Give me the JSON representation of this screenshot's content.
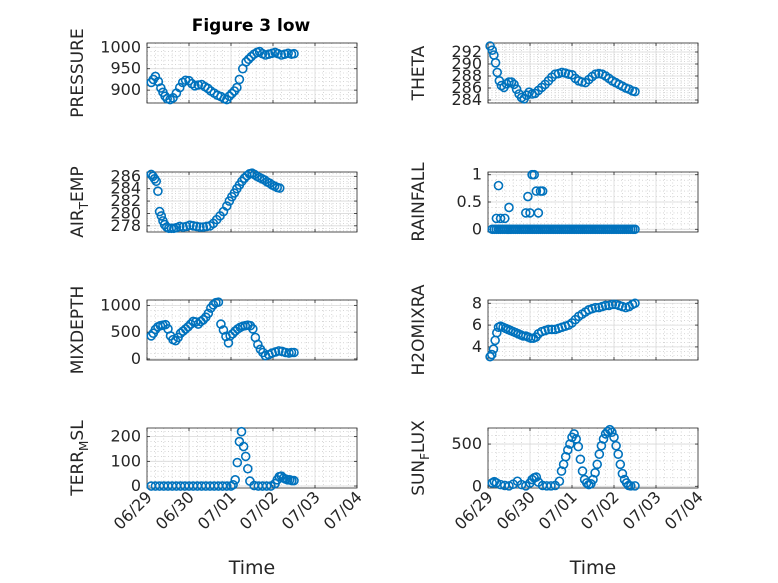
{
  "title": "Figure 3 low",
  "colors": {
    "marker": "#0072BD",
    "axis": "#262626",
    "grid": "#d9d9d9"
  },
  "chart_data": [
    {
      "type": "scatter",
      "id": "pressure",
      "ylabel": "PRESSURE",
      "xlabel": "",
      "xlim": [
        0,
        5
      ],
      "ylim": [
        870,
        1010
      ],
      "yticks": [
        900,
        950,
        1000
      ],
      "xticks": [
        0,
        1,
        2,
        3,
        4,
        5
      ],
      "xticklabels": [
        "06/29",
        "06/30",
        "07/01",
        "07/02",
        "07/03",
        "07/04"
      ],
      "grid": true,
      "marker": "circle",
      "x": [
        0.1,
        0.15,
        0.2,
        0.27,
        0.33,
        0.38,
        0.43,
        0.48,
        0.55,
        0.62,
        0.7,
        0.78,
        0.85,
        0.92,
        1.0,
        1.07,
        1.14,
        1.22,
        1.3,
        1.38,
        1.45,
        1.52,
        1.6,
        1.68,
        1.76,
        1.84,
        1.9,
        1.96,
        2.02,
        2.08,
        2.14,
        2.2,
        2.28,
        2.36,
        2.42,
        2.48,
        2.55,
        2.62,
        2.68,
        2.75,
        2.82,
        2.9,
        2.98,
        3.05,
        3.12,
        3.2,
        3.28,
        3.36,
        3.44,
        3.5
      ],
      "y": [
        918,
        925,
        932,
        920,
        905,
        895,
        886,
        880,
        878,
        882,
        893,
        906,
        918,
        923,
        922,
        915,
        910,
        912,
        913,
        908,
        904,
        898,
        893,
        888,
        885,
        880,
        878,
        886,
        892,
        898,
        906,
        925,
        950,
        966,
        972,
        978,
        984,
        988,
        990,
        985,
        982,
        984,
        986,
        988,
        985,
        982,
        984,
        986,
        984,
        985
      ]
    },
    {
      "type": "scatter",
      "id": "theta",
      "ylabel": "THETA",
      "xlabel": "",
      "xlim": [
        0,
        5
      ],
      "ylim": [
        283.5,
        293.5
      ],
      "yticks": [
        284,
        286,
        288,
        290,
        292
      ],
      "xticks": [
        0,
        1,
        2,
        3,
        4,
        5
      ],
      "xticklabels": [
        "06/29",
        "06/30",
        "07/01",
        "07/02",
        "07/03",
        "07/04"
      ],
      "grid": true,
      "marker": "circle",
      "x": [
        0.05,
        0.1,
        0.14,
        0.18,
        0.22,
        0.27,
        0.32,
        0.38,
        0.44,
        0.5,
        0.56,
        0.62,
        0.68,
        0.74,
        0.8,
        0.86,
        0.92,
        0.98,
        1.05,
        1.12,
        1.2,
        1.28,
        1.36,
        1.44,
        1.52,
        1.6,
        1.68,
        1.76,
        1.84,
        1.92,
        2.0,
        2.08,
        2.16,
        2.24,
        2.32,
        2.4,
        2.48,
        2.56,
        2.64,
        2.72,
        2.8,
        2.88,
        2.96,
        3.04,
        3.12,
        3.2,
        3.28,
        3.36,
        3.44,
        3.5
      ],
      "y": [
        293,
        292.3,
        291.5,
        290.2,
        288.6,
        287.2,
        286.4,
        286.1,
        286.7,
        287.0,
        287.0,
        286.6,
        285.8,
        285.0,
        284.4,
        284.2,
        284.8,
        285.3,
        285.0,
        285.1,
        285.6,
        286.1,
        286.6,
        287.2,
        287.8,
        288.3,
        288.4,
        288.6,
        288.5,
        288.3,
        288.2,
        287.6,
        287.2,
        287.0,
        286.9,
        287.4,
        287.9,
        288.3,
        288.4,
        288.3,
        288.0,
        287.6,
        287.2,
        286.9,
        286.6,
        286.3,
        286.0,
        285.8,
        285.5,
        285.4
      ]
    },
    {
      "type": "scatter",
      "id": "air_temp",
      "ylabel": "AIR_TEMP",
      "xlabel": "",
      "xlim": [
        0,
        5
      ],
      "ylim": [
        277,
        286.7
      ],
      "yticks": [
        278,
        280,
        282,
        284,
        286
      ],
      "xticks": [
        0,
        1,
        2,
        3,
        4,
        5
      ],
      "xticklabels": [
        "06/29",
        "06/30",
        "07/01",
        "07/02",
        "07/03",
        "07/04"
      ],
      "grid": true,
      "marker": "circle",
      "x": [
        0.1,
        0.14,
        0.18,
        0.22,
        0.26,
        0.3,
        0.34,
        0.38,
        0.42,
        0.47,
        0.52,
        0.58,
        0.64,
        0.7,
        0.78,
        0.86,
        0.94,
        1.02,
        1.1,
        1.18,
        1.26,
        1.34,
        1.42,
        1.5,
        1.58,
        1.66,
        1.74,
        1.82,
        1.9,
        1.96,
        2.02,
        2.08,
        2.14,
        2.2,
        2.26,
        2.32,
        2.38,
        2.44,
        2.5,
        2.56,
        2.62,
        2.68,
        2.74,
        2.8,
        2.86,
        2.92,
        2.98,
        3.04,
        3.1,
        3.16
      ],
      "y": [
        286.3,
        286.0,
        285.6,
        285.2,
        283.6,
        280.3,
        279.6,
        278.8,
        278.2,
        277.8,
        277.6,
        277.6,
        277.6,
        277.7,
        277.9,
        277.8,
        277.9,
        278.1,
        278.0,
        277.9,
        277.8,
        277.8,
        277.9,
        278.0,
        278.4,
        279.0,
        279.6,
        280.3,
        281.2,
        282.0,
        282.7,
        283.3,
        284.0,
        284.6,
        285.2,
        285.7,
        286.1,
        286.4,
        286.5,
        286.3,
        286.0,
        285.8,
        285.6,
        285.4,
        285.1,
        284.9,
        284.6,
        284.4,
        284.2,
        284.1
      ]
    },
    {
      "type": "scatter",
      "id": "rainfall",
      "ylabel": "RAINFALL",
      "xlabel": "",
      "xlim": [
        0,
        5
      ],
      "ylim": [
        -0.05,
        1.05
      ],
      "yticks": [
        0,
        0.5,
        1
      ],
      "xticks": [
        0,
        1,
        2,
        3,
        4,
        5
      ],
      "xticklabels": [
        "06/29",
        "06/30",
        "07/01",
        "07/02",
        "07/03",
        "07/04"
      ],
      "grid": true,
      "marker": "circle",
      "x": [
        0.1,
        0.15,
        0.2,
        0.25,
        0.3,
        0.35,
        0.4,
        0.45,
        0.5,
        0.55,
        0.6,
        0.65,
        0.7,
        0.75,
        0.8,
        0.85,
        0.9,
        0.95,
        1.0,
        1.05,
        1.1,
        1.15,
        1.2,
        1.25,
        1.3,
        1.35,
        1.4,
        1.45,
        1.5,
        1.55,
        1.6,
        1.65,
        1.7,
        1.75,
        1.8,
        1.85,
        1.9,
        1.95,
        2.0,
        2.05,
        2.1,
        2.15,
        2.2,
        2.25,
        2.3,
        2.35,
        2.4,
        2.45,
        2.5,
        2.55,
        2.6,
        2.65,
        2.7,
        2.75,
        2.8,
        2.85,
        2.9,
        2.95,
        3.0,
        3.05,
        3.1,
        3.15,
        3.2,
        3.25,
        3.3,
        3.35,
        3.4,
        3.45,
        3.5,
        0.2,
        0.25,
        0.3,
        0.4,
        0.5,
        0.9,
        0.95,
        1.0,
        1.05,
        1.1,
        1.15,
        1.2,
        1.25,
        1.3
      ],
      "y": [
        0,
        0,
        0,
        0,
        0,
        0,
        0,
        0,
        0,
        0,
        0,
        0,
        0,
        0,
        0,
        0,
        0,
        0,
        0,
        0,
        0,
        0,
        0,
        0,
        0,
        0,
        0,
        0,
        0,
        0,
        0,
        0,
        0,
        0,
        0,
        0,
        0,
        0,
        0,
        0,
        0,
        0,
        0,
        0,
        0,
        0,
        0,
        0,
        0,
        0,
        0,
        0,
        0,
        0,
        0,
        0,
        0,
        0,
        0,
        0,
        0,
        0,
        0,
        0,
        0,
        0,
        0,
        0,
        0,
        0.2,
        0.8,
        0.2,
        0.2,
        0.4,
        0.3,
        0.6,
        0.3,
        1.0,
        1.0,
        0.7,
        0.3,
        0.7,
        0.7
      ]
    },
    {
      "type": "scatter",
      "id": "mixdepth",
      "ylabel": "MIXDEPTH",
      "xlabel": "",
      "xlim": [
        0,
        5
      ],
      "ylim": [
        -20,
        1100
      ],
      "yticks": [
        0,
        500,
        1000
      ],
      "xticks": [
        0,
        1,
        2,
        3,
        4,
        5
      ],
      "xticklabels": [
        "06/29",
        "06/30",
        "07/01",
        "07/02",
        "07/03",
        "07/04"
      ],
      "grid": true,
      "marker": "circle",
      "x": [
        0.1,
        0.15,
        0.2,
        0.26,
        0.32,
        0.38,
        0.44,
        0.5,
        0.56,
        0.62,
        0.68,
        0.74,
        0.8,
        0.86,
        0.92,
        0.98,
        1.04,
        1.1,
        1.16,
        1.22,
        1.28,
        1.34,
        1.4,
        1.46,
        1.52,
        1.58,
        1.64,
        1.7,
        1.76,
        1.82,
        1.88,
        1.94,
        1.98,
        2.04,
        2.1,
        2.16,
        2.22,
        2.28,
        2.34,
        2.4,
        2.46,
        2.52,
        2.58,
        2.64,
        2.7,
        2.76,
        2.82,
        2.9,
        2.98,
        3.06,
        3.14,
        3.22,
        3.3,
        3.38,
        3.44,
        3.5
      ],
      "y": [
        430,
        480,
        550,
        600,
        620,
        630,
        640,
        560,
        430,
        360,
        340,
        400,
        480,
        520,
        560,
        600,
        650,
        700,
        690,
        650,
        700,
        730,
        780,
        850,
        950,
        1010,
        1050,
        1060,
        650,
        540,
        420,
        300,
        430,
        470,
        520,
        560,
        590,
        610,
        620,
        630,
        620,
        560,
        400,
        270,
        180,
        120,
        60,
        80,
        110,
        130,
        150,
        140,
        120,
        110,
        120,
        120
      ]
    },
    {
      "type": "scatter",
      "id": "h2omixra",
      "ylabel": "H2OMIXRA",
      "xlabel": "",
      "xlim": [
        0,
        5
      ],
      "ylim": [
        2.8,
        8.3
      ],
      "yticks": [
        4,
        6,
        8
      ],
      "xticks": [
        0,
        1,
        2,
        3,
        4,
        5
      ],
      "xticklabels": [
        "06/29",
        "06/30",
        "07/01",
        "07/02",
        "07/03",
        "07/04"
      ],
      "grid": true,
      "marker": "circle",
      "x": [
        0.05,
        0.09,
        0.13,
        0.17,
        0.21,
        0.25,
        0.3,
        0.36,
        0.42,
        0.48,
        0.54,
        0.6,
        0.66,
        0.72,
        0.78,
        0.84,
        0.9,
        0.96,
        1.02,
        1.08,
        1.14,
        1.2,
        1.28,
        1.36,
        1.44,
        1.52,
        1.6,
        1.68,
        1.76,
        1.84,
        1.92,
        2.0,
        2.08,
        2.16,
        2.24,
        2.32,
        2.4,
        2.48,
        2.56,
        2.64,
        2.72,
        2.8,
        2.88,
        2.96,
        3.04,
        3.12,
        3.2,
        3.28,
        3.36,
        3.44,
        3.5
      ],
      "y": [
        3.1,
        3.3,
        3.8,
        4.6,
        5.3,
        5.8,
        5.9,
        5.8,
        5.7,
        5.6,
        5.5,
        5.4,
        5.3,
        5.2,
        5.1,
        5.0,
        5.0,
        4.9,
        4.8,
        4.8,
        4.9,
        5.2,
        5.4,
        5.5,
        5.6,
        5.6,
        5.6,
        5.7,
        5.8,
        5.9,
        6.0,
        6.2,
        6.5,
        6.8,
        7.0,
        7.2,
        7.4,
        7.5,
        7.6,
        7.6,
        7.7,
        7.8,
        7.8,
        7.9,
        7.9,
        7.8,
        7.7,
        7.6,
        7.7,
        7.9,
        8.0
      ]
    },
    {
      "type": "scatter",
      "id": "terr_msl",
      "ylabel": "TERR_MSL",
      "xlabel": "Time",
      "xlim": [
        0,
        5
      ],
      "ylim": [
        -8,
        235
      ],
      "yticks": [
        0,
        100,
        200
      ],
      "xticks": [
        0,
        1,
        2,
        3,
        4,
        5
      ],
      "xticklabels": [
        "06/29",
        "06/30",
        "07/01",
        "07/02",
        "07/03",
        "07/04"
      ],
      "grid": true,
      "marker": "circle",
      "x": [
        0.1,
        0.2,
        0.3,
        0.4,
        0.5,
        0.6,
        0.7,
        0.8,
        0.9,
        1.0,
        1.1,
        1.2,
        1.3,
        1.4,
        1.5,
        1.6,
        1.7,
        1.8,
        1.9,
        2.0,
        2.05,
        2.1,
        2.15,
        2.2,
        2.25,
        2.3,
        2.35,
        2.4,
        2.45,
        2.55,
        2.65,
        2.75,
        2.85,
        2.95,
        3.05,
        3.1,
        3.15,
        3.2,
        3.25,
        3.3,
        3.35,
        3.4,
        3.45,
        3.5
      ],
      "y": [
        0,
        0,
        0,
        0,
        0,
        0,
        0,
        0,
        0,
        0,
        0,
        0,
        0,
        0,
        0,
        0,
        0,
        0,
        0,
        0,
        5,
        25,
        95,
        180,
        220,
        160,
        120,
        70,
        20,
        2,
        0,
        0,
        0,
        0,
        10,
        25,
        38,
        40,
        32,
        28,
        25,
        25,
        22,
        22
      ]
    },
    {
      "type": "scatter",
      "id": "sun_flux",
      "ylabel": "SUN_FLUX",
      "xlabel": "Time",
      "xlim": [
        0,
        5
      ],
      "ylim": [
        -20,
        690
      ],
      "yticks": [
        0,
        500
      ],
      "xticks": [
        0,
        1,
        2,
        3,
        4,
        5
      ],
      "xticklabels": [
        "06/29",
        "06/30",
        "07/01",
        "07/02",
        "07/03",
        "07/04"
      ],
      "grid": true,
      "marker": "circle",
      "x": [
        0.1,
        0.15,
        0.2,
        0.3,
        0.4,
        0.5,
        0.6,
        0.7,
        0.8,
        0.9,
        1.0,
        1.05,
        1.1,
        1.15,
        1.2,
        1.3,
        1.4,
        1.5,
        1.6,
        1.7,
        1.75,
        1.8,
        1.85,
        1.9,
        1.95,
        2.0,
        2.05,
        2.1,
        2.15,
        2.2,
        2.25,
        2.3,
        2.35,
        2.4,
        2.45,
        2.5,
        2.55,
        2.6,
        2.65,
        2.7,
        2.75,
        2.8,
        2.85,
        2.9,
        2.95,
        3.0,
        3.05,
        3.1,
        3.15,
        3.2,
        3.25,
        3.3,
        3.35,
        3.4,
        3.5
      ],
      "y": [
        40,
        55,
        40,
        20,
        10,
        5,
        25,
        60,
        20,
        5,
        40,
        80,
        100,
        110,
        50,
        10,
        5,
        5,
        10,
        60,
        180,
        260,
        350,
        430,
        500,
        580,
        620,
        560,
        470,
        320,
        180,
        80,
        40,
        20,
        30,
        80,
        160,
        260,
        380,
        480,
        560,
        620,
        650,
        670,
        640,
        580,
        480,
        380,
        260,
        150,
        80,
        40,
        10,
        5,
        5
      ]
    }
  ]
}
